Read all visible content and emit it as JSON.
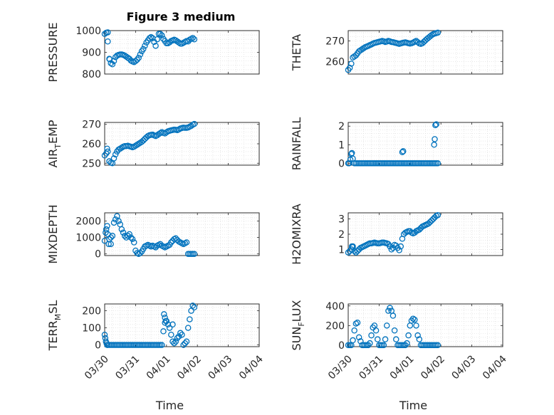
{
  "figure": {
    "title": "Figure 3 medium",
    "marker_color": "#0072BD"
  },
  "chart_data": [
    {
      "type": "scatter",
      "panel": "pressure",
      "title": "Figure 3 medium",
      "ylabel": "PRESSURE",
      "xlabel": "",
      "xlim": [
        "2024-03-30",
        "2024-04-04"
      ],
      "ylim": [
        800,
        1000
      ],
      "yticks": [
        "800",
        "900",
        "1000"
      ],
      "xticks": [],
      "grid": true,
      "minor_grid": true,
      "x_days": [
        0.0,
        0.05,
        0.1,
        0.15,
        0.2,
        0.25,
        0.3,
        0.35,
        0.4,
        0.45,
        0.5,
        0.55,
        0.6,
        0.65,
        0.7,
        0.75,
        0.8,
        0.85,
        0.9,
        0.95,
        1.0,
        1.05,
        1.1,
        1.15,
        1.2,
        1.25,
        1.3,
        1.35,
        1.4,
        1.45,
        1.5,
        1.55,
        1.6,
        1.65,
        1.7,
        1.75,
        1.8,
        1.85,
        1.9,
        1.95,
        2.0,
        2.05,
        2.1,
        2.15,
        2.2,
        2.25,
        2.3,
        2.35,
        2.4,
        2.45,
        2.5,
        2.55,
        2.6,
        2.65,
        2.7,
        2.75,
        2.8,
        2.85,
        2.9,
        0.1,
        0.16
      ],
      "values": [
        985,
        990,
        992,
        870,
        850,
        845,
        860,
        878,
        885,
        888,
        890,
        890,
        888,
        885,
        880,
        875,
        870,
        862,
        858,
        855,
        860,
        866,
        875,
        890,
        905,
        915,
        930,
        945,
        955,
        965,
        970,
        965,
        948,
        930,
        960,
        985,
        985,
        978,
        962,
        952,
        942,
        942,
        946,
        952,
        955,
        958,
        955,
        950,
        945,
        940,
        940,
        944,
        948,
        952,
        950,
        958,
        962,
        966,
        960,
        950,
        868
      ]
    },
    {
      "type": "scatter",
      "panel": "theta",
      "ylabel": "THETA",
      "xlabel": "",
      "xlim": [
        "2024-03-30",
        "2024-04-04"
      ],
      "ylim": [
        254,
        275
      ],
      "yticks": [
        "260",
        "270"
      ],
      "xticks": [],
      "grid": true,
      "minor_grid": true,
      "x_days": [
        0.0,
        0.05,
        0.1,
        0.15,
        0.2,
        0.25,
        0.3,
        0.35,
        0.4,
        0.45,
        0.5,
        0.55,
        0.6,
        0.65,
        0.7,
        0.75,
        0.8,
        0.85,
        0.9,
        0.95,
        1.0,
        1.05,
        1.1,
        1.15,
        1.2,
        1.25,
        1.3,
        1.35,
        1.4,
        1.45,
        1.5,
        1.55,
        1.6,
        1.65,
        1.7,
        1.75,
        1.8,
        1.85,
        1.9,
        1.95,
        2.0,
        2.05,
        2.1,
        2.15,
        2.2,
        2.25,
        2.3,
        2.35,
        2.4,
        2.45,
        2.5,
        2.55,
        2.6,
        2.65,
        2.7,
        2.75,
        2.8,
        2.85,
        2.9
      ],
      "values": [
        256,
        257,
        259,
        262,
        262.5,
        263,
        264,
        265,
        265.5,
        266,
        266.5,
        267,
        267.3,
        267.6,
        268,
        268.3,
        268.7,
        269,
        269.2,
        269.4,
        269.6,
        269.8,
        270,
        269.8,
        269.5,
        269.7,
        270,
        269.8,
        269.5,
        269.4,
        269.2,
        269,
        268.8,
        268.6,
        268.8,
        269,
        269.2,
        269.3,
        269.1,
        268.9,
        268.7,
        268.9,
        269.2,
        269.6,
        270,
        269.4,
        268.8,
        268.6,
        268.9,
        269.6,
        270.3,
        271,
        271.6,
        272.2,
        272.8,
        273.3,
        273.6,
        273.8,
        274
      ]
    },
    {
      "type": "scatter",
      "panel": "air_temp",
      "ylabel": "AIR_TEMP",
      "xlabel": "",
      "xlim": [
        "2024-03-30",
        "2024-04-04"
      ],
      "ylim": [
        249,
        271
      ],
      "yticks": [
        "250",
        "260",
        "270"
      ],
      "xticks": [],
      "grid": true,
      "minor_grid": true,
      "x_days": [
        0.0,
        0.05,
        0.1,
        0.15,
        0.2,
        0.25,
        0.3,
        0.35,
        0.4,
        0.45,
        0.5,
        0.55,
        0.6,
        0.65,
        0.7,
        0.75,
        0.8,
        0.85,
        0.9,
        0.95,
        1.0,
        1.05,
        1.1,
        1.15,
        1.2,
        1.25,
        1.3,
        1.35,
        1.4,
        1.45,
        1.5,
        1.55,
        1.6,
        1.65,
        1.7,
        1.75,
        1.8,
        1.85,
        1.9,
        1.95,
        2.0,
        2.05,
        2.1,
        2.15,
        2.2,
        2.25,
        2.3,
        2.35,
        2.4,
        2.45,
        2.5,
        2.55,
        2.6,
        2.65,
        2.7,
        2.75,
        2.8,
        2.85,
        2.9,
        0.08
      ],
      "values": [
        254,
        255,
        256,
        251,
        250.3,
        250,
        252.5,
        254.5,
        256,
        257,
        257.5,
        258,
        258.5,
        258.8,
        258.8,
        259,
        258.7,
        258.5,
        258.2,
        258.5,
        259,
        259.5,
        260,
        260.5,
        261,
        261.7,
        262.5,
        263.3,
        264,
        264.4,
        264.6,
        264.7,
        264.3,
        264,
        264.4,
        265,
        265.5,
        266,
        265.6,
        265.3,
        265.9,
        266.4,
        266.7,
        266.9,
        267.1,
        267.3,
        267.2,
        267,
        267.4,
        267.9,
        268.1,
        268.3,
        268.2,
        268.2,
        268.4,
        268.8,
        269.2,
        269.8,
        270.2,
        257.5
      ]
    },
    {
      "type": "scatter",
      "panel": "rainfall",
      "ylabel": "RAINFALL",
      "xlabel": "",
      "xlim": [
        "2024-03-30",
        "2024-04-04"
      ],
      "ylim": [
        -0.1,
        2.2
      ],
      "yticks": [
        "0",
        "1",
        "2"
      ],
      "xticks": [],
      "grid": true,
      "minor_grid": true,
      "x_days": [
        0.0,
        0.03,
        0.07,
        0.1,
        0.12,
        0.15,
        0.2,
        0.25,
        0.3,
        0.35,
        0.4,
        0.45,
        0.5,
        0.55,
        0.6,
        0.65,
        0.7,
        0.75,
        0.8,
        0.85,
        0.9,
        0.95,
        1.0,
        1.05,
        1.1,
        1.15,
        1.2,
        1.25,
        1.3,
        1.35,
        1.4,
        1.45,
        1.5,
        1.55,
        1.6,
        1.65,
        1.7,
        1.75,
        1.8,
        1.85,
        1.9,
        1.95,
        2.0,
        2.05,
        2.1,
        2.15,
        2.2,
        2.25,
        2.3,
        2.35,
        2.4,
        2.45,
        2.5,
        2.55,
        2.6,
        2.65,
        2.7,
        2.75,
        2.8,
        2.85,
        2.9,
        1.75,
        1.78,
        2.78,
        2.8,
        2.82,
        2.85
      ],
      "values": [
        0,
        0,
        0.2,
        0.5,
        0.55,
        0.25,
        0,
        0,
        0,
        0,
        0,
        0,
        0,
        0,
        0,
        0,
        0,
        0,
        0,
        0,
        0,
        0,
        0,
        0,
        0,
        0,
        0,
        0,
        0,
        0,
        0,
        0,
        0,
        0,
        0,
        0,
        0,
        0,
        0,
        0,
        0,
        0,
        0,
        0,
        0,
        0,
        0,
        0,
        0,
        0,
        0,
        0,
        0,
        0,
        0,
        0,
        0,
        0,
        0,
        0,
        0,
        0.6,
        0.65,
        1.0,
        1.3,
        2.05,
        2.1
      ]
    },
    {
      "type": "scatter",
      "panel": "mixdepth",
      "ylabel": "MIXDEPTH",
      "xlabel": "",
      "xlim": [
        "2024-03-30",
        "2024-04-04"
      ],
      "ylim": [
        -100,
        2500
      ],
      "yticks": [
        "0",
        "1000",
        "2000"
      ],
      "xticks": [],
      "grid": true,
      "minor_grid": true,
      "x_days": [
        0.0,
        0.05,
        0.1,
        0.15,
        0.2,
        0.25,
        0.3,
        0.35,
        0.4,
        0.45,
        0.5,
        0.55,
        0.6,
        0.65,
        0.7,
        0.75,
        0.8,
        0.85,
        0.9,
        0.95,
        1.0,
        1.05,
        1.1,
        1.15,
        1.2,
        1.25,
        1.3,
        1.35,
        1.4,
        1.45,
        1.5,
        1.55,
        1.6,
        1.65,
        1.7,
        1.75,
        1.8,
        1.85,
        1.9,
        1.95,
        2.0,
        2.05,
        2.1,
        2.15,
        2.2,
        2.25,
        2.3,
        2.35,
        2.4,
        2.45,
        2.5,
        2.55,
        2.6,
        2.65,
        2.7,
        2.75,
        2.8,
        2.85,
        2.9,
        0.03,
        0.08,
        0.13,
        0.2
      ],
      "values": [
        800,
        1500,
        1200,
        900,
        600,
        1100,
        1900,
        2100,
        2300,
        2000,
        1800,
        1500,
        1300,
        1100,
        1000,
        1100,
        1200,
        1000,
        900,
        700,
        200,
        50,
        0,
        50,
        150,
        300,
        450,
        500,
        550,
        500,
        450,
        500,
        450,
        400,
        500,
        550,
        600,
        500,
        450,
        400,
        450,
        500,
        550,
        700,
        800,
        900,
        950,
        850,
        750,
        700,
        650,
        600,
        650,
        700,
        0,
        0,
        0,
        0,
        0,
        1300,
        1700,
        600,
        1000
      ]
    },
    {
      "type": "scatter",
      "panel": "h2omixra",
      "ylabel": "H2OMIXRA",
      "xlabel": "",
      "xlim": [
        "2024-03-30",
        "2024-04-04"
      ],
      "ylim": [
        0.6,
        3.4
      ],
      "yticks": [
        "1",
        "2",
        "3"
      ],
      "xticks": [],
      "grid": true,
      "minor_grid": true,
      "x_days": [
        0.0,
        0.05,
        0.1,
        0.15,
        0.2,
        0.25,
        0.3,
        0.35,
        0.4,
        0.45,
        0.5,
        0.55,
        0.6,
        0.65,
        0.7,
        0.75,
        0.8,
        0.85,
        0.9,
        0.95,
        1.0,
        1.05,
        1.1,
        1.15,
        1.2,
        1.25,
        1.3,
        1.35,
        1.4,
        1.45,
        1.5,
        1.55,
        1.6,
        1.65,
        1.7,
        1.75,
        1.8,
        1.85,
        1.9,
        1.95,
        2.0,
        2.05,
        2.1,
        2.15,
        2.2,
        2.25,
        2.3,
        2.35,
        2.4,
        2.45,
        2.5,
        2.55,
        2.6,
        2.65,
        2.7,
        2.75,
        2.8,
        2.85,
        2.9,
        0.12,
        0.15
      ],
      "values": [
        0.8,
        0.9,
        1.0,
        1.2,
        0.9,
        0.8,
        0.9,
        1.0,
        1.1,
        1.15,
        1.2,
        1.25,
        1.3,
        1.35,
        1.4,
        1.4,
        1.42,
        1.45,
        1.42,
        1.4,
        1.4,
        1.42,
        1.45,
        1.45,
        1.42,
        1.4,
        1.35,
        1.2,
        1.0,
        1.1,
        1.3,
        1.25,
        1.1,
        0.95,
        1.2,
        1.7,
        2.0,
        2.1,
        2.15,
        2.2,
        2.2,
        2.1,
        2.05,
        2.1,
        2.2,
        2.25,
        2.3,
        2.4,
        2.5,
        2.55,
        2.6,
        2.65,
        2.7,
        2.8,
        2.9,
        3.0,
        3.1,
        3.2,
        3.25,
        1.2,
        1.15
      ]
    },
    {
      "type": "scatter",
      "panel": "terr_msl",
      "ylabel": "TERR_MSL",
      "xlabel": "Time",
      "xlim": [
        "2024-03-30",
        "2024-04-04"
      ],
      "ylim": [
        -10,
        240
      ],
      "yticks": [
        "0",
        "100",
        "200"
      ],
      "xticks": [
        "03/30",
        "03/31",
        "04/01",
        "04/02",
        "04/03",
        "04/04"
      ],
      "grid": true,
      "minor_grid": true,
      "x_days": [
        0.0,
        0.02,
        0.04,
        0.06,
        0.08,
        0.1,
        0.15,
        0.2,
        0.25,
        0.3,
        0.35,
        0.4,
        0.45,
        0.5,
        0.55,
        0.6,
        0.65,
        0.7,
        0.75,
        0.8,
        0.85,
        0.9,
        0.95,
        1.0,
        1.05,
        1.1,
        1.15,
        1.2,
        1.25,
        1.3,
        1.35,
        1.4,
        1.45,
        1.5,
        1.55,
        1.6,
        1.65,
        1.7,
        1.75,
        1.8,
        1.85,
        1.9,
        1.95,
        2.0,
        2.05,
        2.1,
        2.15,
        2.2,
        2.25,
        2.3,
        2.35,
        2.4,
        2.45,
        2.5,
        2.55,
        2.6,
        2.65,
        2.7,
        2.75,
        2.8,
        2.85,
        2.9,
        1.92,
        1.95,
        1.98,
        2.2
      ],
      "values": [
        60,
        40,
        20,
        10,
        0,
        0,
        0,
        0,
        0,
        0,
        0,
        0,
        0,
        0,
        0,
        0,
        0,
        0,
        0,
        0,
        0,
        0,
        0,
        0,
        0,
        0,
        0,
        0,
        0,
        0,
        0,
        0,
        0,
        0,
        0,
        0,
        0,
        0,
        0,
        0,
        0,
        80,
        130,
        140,
        120,
        100,
        60,
        20,
        10,
        20,
        40,
        50,
        70,
        60,
        0,
        10,
        20,
        100,
        150,
        200,
        230,
        220,
        180,
        160,
        140,
        120
      ]
    },
    {
      "type": "scatter",
      "panel": "sun_flux",
      "ylabel": "SUN_FLUX",
      "xlabel": "Time",
      "xlim": [
        "2024-03-30",
        "2024-04-04"
      ],
      "ylim": [
        -15,
        420
      ],
      "yticks": [
        "0",
        "200",
        "400"
      ],
      "xticks": [
        "03/30",
        "03/31",
        "04/01",
        "04/02",
        "04/03",
        "04/04"
      ],
      "grid": true,
      "minor_grid": true,
      "x_days": [
        0.0,
        0.05,
        0.1,
        0.15,
        0.2,
        0.25,
        0.3,
        0.35,
        0.4,
        0.45,
        0.5,
        0.55,
        0.6,
        0.65,
        0.7,
        0.75,
        0.8,
        0.85,
        0.9,
        0.95,
        1.0,
        1.05,
        1.1,
        1.15,
        1.2,
        1.25,
        1.3,
        1.35,
        1.4,
        1.45,
        1.5,
        1.55,
        1.6,
        1.65,
        1.7,
        1.75,
        1.8,
        1.85,
        1.9,
        1.95,
        2.0,
        2.05,
        2.1,
        2.15,
        2.2,
        2.25,
        2.3,
        2.35,
        2.4,
        2.45,
        2.5,
        2.55,
        2.6,
        2.65,
        2.7,
        2.75,
        2.8,
        2.85,
        2.9
      ],
      "values": [
        0,
        0,
        0,
        50,
        150,
        220,
        230,
        80,
        40,
        0,
        0,
        0,
        0,
        0,
        20,
        100,
        180,
        200,
        150,
        60,
        0,
        0,
        0,
        0,
        60,
        200,
        350,
        380,
        350,
        300,
        150,
        60,
        0,
        0,
        0,
        0,
        0,
        0,
        20,
        100,
        200,
        250,
        270,
        260,
        200,
        100,
        60,
        0,
        0,
        0,
        0,
        0,
        0,
        0,
        0,
        0,
        0,
        0,
        0
      ]
    }
  ]
}
